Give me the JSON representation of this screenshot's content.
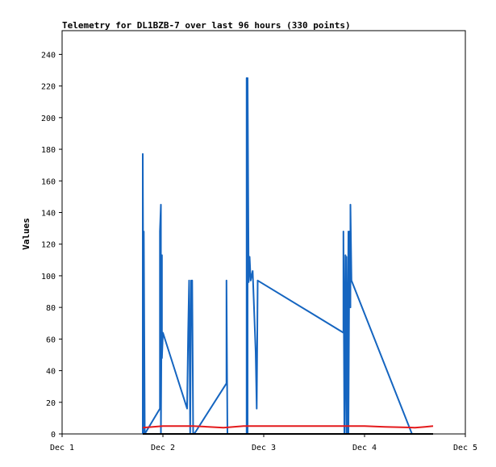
{
  "chart_data": {
    "type": "line",
    "title": "Telemetry for DL1BZB-7 over last 96 hours (330 points)",
    "xlabel": "",
    "ylabel": "Values",
    "xlim": [
      0,
      4
    ],
    "ylim": [
      0,
      255
    ],
    "x_ticks": [
      {
        "value": 0,
        "label": "Dec 1"
      },
      {
        "value": 1,
        "label": "Dec 2"
      },
      {
        "value": 2,
        "label": "Dec 3"
      },
      {
        "value": 3,
        "label": "Dec 4"
      },
      {
        "value": 4,
        "label": "Dec 5"
      }
    ],
    "y_ticks": [
      0,
      20,
      40,
      60,
      80,
      100,
      120,
      140,
      160,
      180,
      200,
      220,
      240
    ],
    "grid": false,
    "legend": "none",
    "series": [
      {
        "color": "#1565c0",
        "points": [
          [
            0.8,
            0
          ],
          [
            0.8,
            177
          ],
          [
            0.81,
            0
          ],
          [
            0.81,
            128
          ],
          [
            0.82,
            0
          ],
          [
            0.97,
            16
          ],
          [
            0.97,
            128
          ],
          [
            0.98,
            145
          ],
          [
            0.98,
            0
          ],
          [
            0.99,
            113
          ],
          [
            0.99,
            48
          ],
          [
            1.0,
            64
          ],
          [
            1.24,
            16
          ],
          [
            1.25,
            64
          ],
          [
            1.26,
            97
          ],
          [
            1.27,
            0
          ],
          [
            1.28,
            97
          ],
          [
            1.28,
            72
          ],
          [
            1.29,
            97
          ],
          [
            1.3,
            0
          ],
          [
            1.31,
            0
          ],
          [
            1.63,
            32
          ],
          [
            1.63,
            97
          ],
          [
            1.64,
            0
          ],
          [
            1.83,
            0
          ],
          [
            1.83,
            225
          ],
          [
            1.84,
            0
          ],
          [
            1.84,
            225
          ],
          [
            1.85,
            96
          ],
          [
            1.86,
            112
          ],
          [
            1.87,
            97
          ],
          [
            1.89,
            103
          ],
          [
            1.92,
            52
          ],
          [
            1.93,
            16
          ],
          [
            1.94,
            97
          ],
          [
            2.79,
            64
          ],
          [
            2.79,
            128
          ],
          [
            2.8,
            0
          ],
          [
            2.81,
            113
          ],
          [
            2.82,
            0
          ],
          [
            2.82,
            112
          ],
          [
            2.83,
            0
          ],
          [
            2.84,
            128
          ],
          [
            2.84,
            0
          ],
          [
            2.85,
            128
          ],
          [
            2.86,
            80
          ],
          [
            2.86,
            145
          ],
          [
            2.87,
            97
          ],
          [
            3.47,
            0
          ]
        ]
      },
      {
        "color": "#e41a1c",
        "points": [
          [
            0.8,
            4
          ],
          [
            1.0,
            5
          ],
          [
            1.3,
            5
          ],
          [
            1.6,
            4
          ],
          [
            1.7,
            4.5
          ],
          [
            1.8,
            5
          ],
          [
            2.2,
            5
          ],
          [
            2.6,
            5
          ],
          [
            3.0,
            5
          ],
          [
            3.2,
            4.5
          ],
          [
            3.5,
            4
          ],
          [
            3.6,
            4.5
          ],
          [
            3.68,
            5
          ]
        ]
      },
      {
        "color": "#000000",
        "points": [
          [
            0.8,
            0
          ],
          [
            3.68,
            0
          ]
        ]
      }
    ]
  }
}
